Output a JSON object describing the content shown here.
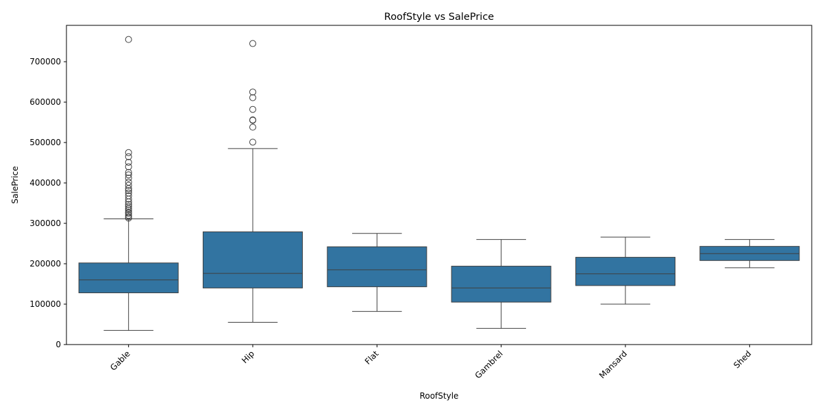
{
  "chart_data": {
    "type": "box",
    "title": "RoofStyle vs SalePrice",
    "xlabel": "RoofStyle",
    "ylabel": "SalePrice",
    "ylim": [
      0,
      790000
    ],
    "yticks": [
      0,
      100000,
      200000,
      300000,
      400000,
      500000,
      600000,
      700000
    ],
    "ytick_labels": [
      "0",
      "100000",
      "200000",
      "300000",
      "400000",
      "500000",
      "600000",
      "700000"
    ],
    "grid": false,
    "box_color": "#3274a1",
    "line_color": "#3f3f3f",
    "categories": [
      "Gable",
      "Hip",
      "Flat",
      "Gambrel",
      "Mansard",
      "Shed"
    ],
    "boxes": [
      {
        "category": "Gable",
        "whisker_low": 35000,
        "q1": 128000,
        "median": 160000,
        "q3": 202000,
        "whisker_high": 311000,
        "outliers": [
          755000,
          475000,
          465000,
          451000,
          440000,
          426000,
          420000,
          412000,
          402000,
          394000,
          386000,
          381000,
          375000,
          368000,
          360000,
          353000,
          347000,
          342000,
          337000,
          333000,
          328000,
          325000,
          320000,
          316000,
          313000
        ]
      },
      {
        "category": "Hip",
        "whisker_low": 55000,
        "q1": 140000,
        "median": 176000,
        "q3": 279000,
        "whisker_high": 485000,
        "outliers": [
          745000,
          625000,
          611000,
          582000,
          556000,
          555000,
          538000,
          501000
        ]
      },
      {
        "category": "Flat",
        "whisker_low": 82000,
        "q1": 143000,
        "median": 185000,
        "q3": 242000,
        "whisker_high": 275000,
        "outliers": []
      },
      {
        "category": "Gambrel",
        "whisker_low": 40000,
        "q1": 105000,
        "median": 140000,
        "q3": 194000,
        "whisker_high": 260000,
        "outliers": []
      },
      {
        "category": "Mansard",
        "whisker_low": 100000,
        "q1": 146000,
        "median": 175000,
        "q3": 216000,
        "whisker_high": 266000,
        "outliers": []
      },
      {
        "category": "Shed",
        "whisker_low": 190000,
        "q1": 208000,
        "median": 225000,
        "q3": 243000,
        "whisker_high": 260000,
        "outliers": []
      }
    ]
  }
}
